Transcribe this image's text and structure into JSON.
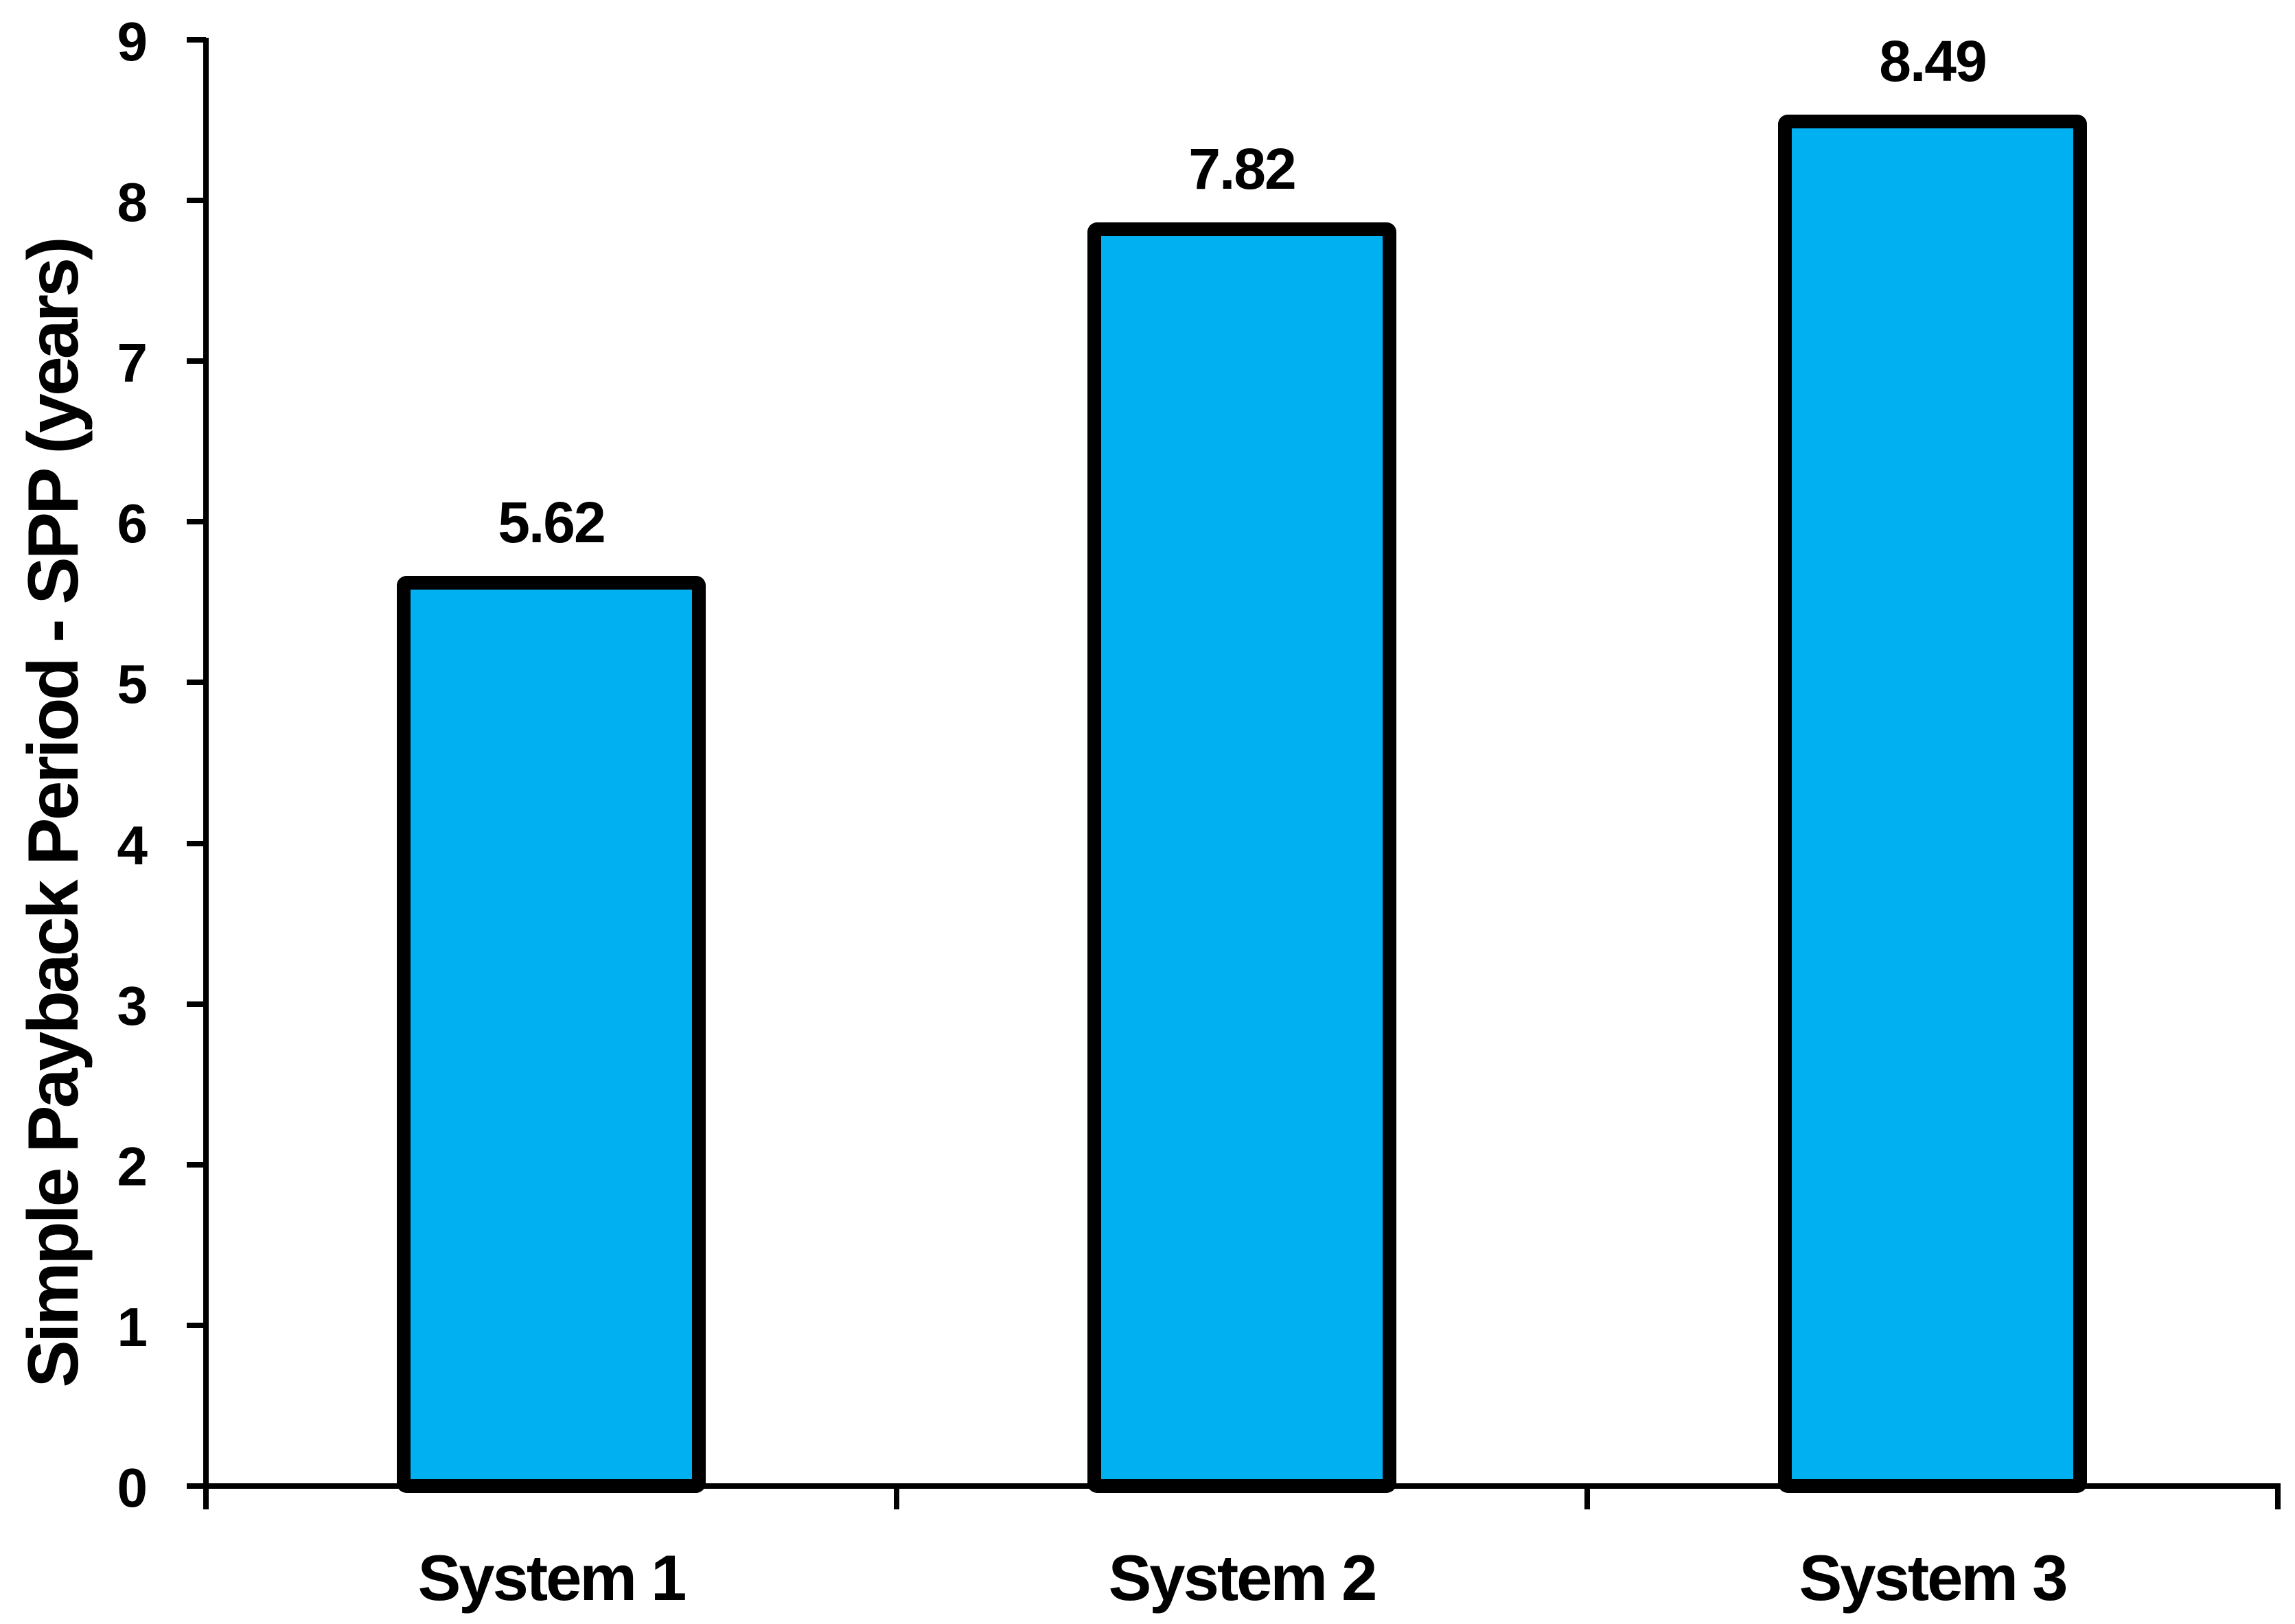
{
  "chart_data": {
    "type": "bar",
    "title": "",
    "categories": [
      "System 1",
      "System 2",
      "System 3"
    ],
    "values": [
      5.62,
      7.82,
      8.49
    ],
    "value_labels": [
      "5.62",
      "7.82",
      "8.49"
    ],
    "xlabel": "",
    "ylabel": "Simple Payback Period - SPP (years)",
    "ylim": [
      0,
      9
    ],
    "yticks": [
      0,
      1,
      2,
      3,
      4,
      5,
      6,
      7,
      8,
      9
    ],
    "ytick_labels": [
      "0",
      "1",
      "2",
      "3",
      "4",
      "5",
      "6",
      "7",
      "8",
      "9"
    ],
    "grid": false,
    "legend": false,
    "bar_fill_color": "#00B0F0",
    "bar_border_color": "#000000",
    "axis_color": "#000000",
    "text_color": "#000000"
  }
}
